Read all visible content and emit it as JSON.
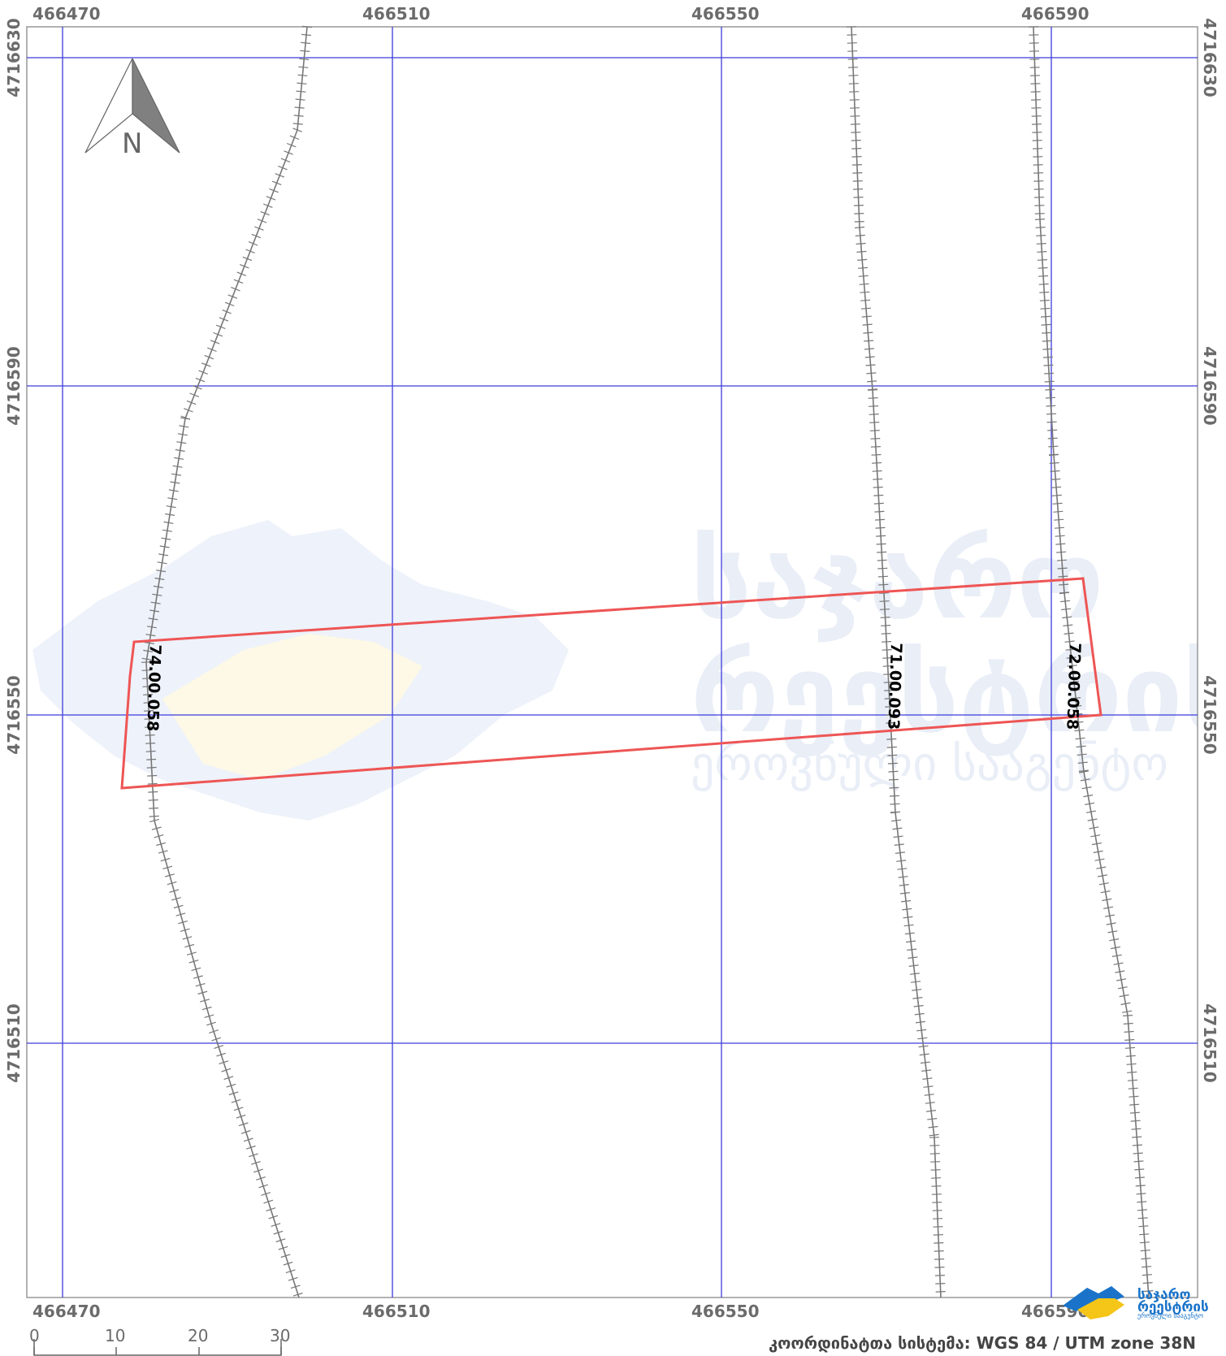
{
  "map": {
    "x_ticks": [
      "466470",
      "466510",
      "466550",
      "466590"
    ],
    "y_ticks": [
      "4716630",
      "4716590",
      "4716550",
      "4716510"
    ],
    "crs_label": "კოორდინატთა სისტემა: WGS 84 / UTM zone 38N",
    "north_label": "N",
    "scale_labels": [
      "0",
      "10",
      "20",
      "30"
    ],
    "parcel_labels": [
      "74.00.058",
      "71.00.093",
      "72.00.058"
    ],
    "watermark_lines": [
      "საჯარო",
      "რეესტრის",
      "ეროვნული სააგენტო"
    ],
    "logo_lines": [
      "საჯარო",
      "რეესტრის",
      "ეროვნული სააგენტო"
    ],
    "colors": {
      "grid": "#3c3cdc",
      "parcel_outline": "#ee5555",
      "railway": "#777777",
      "frame": "#999999",
      "logo_blue": "#1a73c9",
      "logo_yellow": "#f5c518"
    },
    "icons": [
      "north-arrow-icon",
      "scale-bar",
      "napr-logo-icon",
      "railway-line"
    ]
  }
}
